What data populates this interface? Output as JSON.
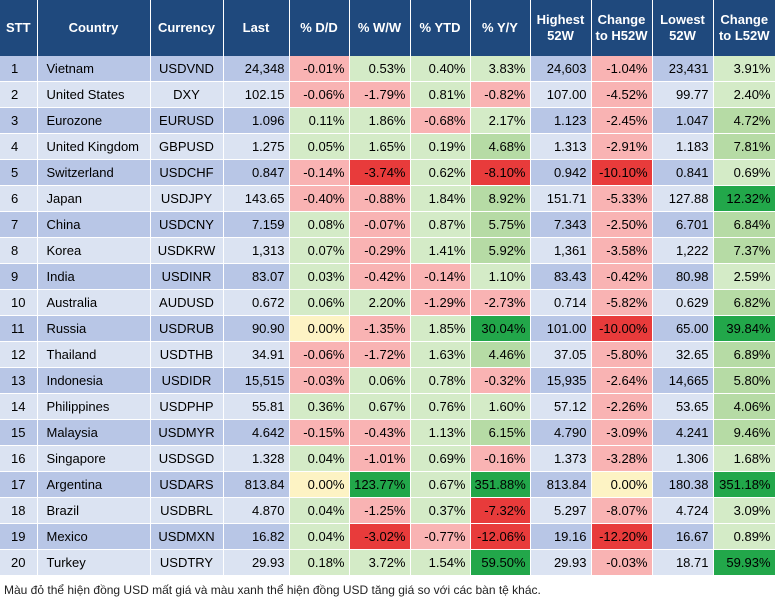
{
  "headers": [
    "STT",
    "Country",
    "Currency",
    "Last",
    "% D/D",
    "% W/W",
    "% YTD",
    "% Y/Y",
    "Highest 52W",
    "Change to H52W",
    "Lowest 52W",
    "Change to L52W"
  ],
  "rows": [
    [
      "1",
      "Vietnam",
      "USDVND",
      "24,348",
      "-0.01%",
      "0.53%",
      "0.40%",
      "3.83%",
      "24,603",
      "-1.04%",
      "23,431",
      "3.91%"
    ],
    [
      "2",
      "United States",
      "DXY",
      "102.15",
      "-0.06%",
      "-1.79%",
      "0.81%",
      "-0.82%",
      "107.00",
      "-4.52%",
      "99.77",
      "2.40%"
    ],
    [
      "3",
      "Eurozone",
      "EURUSD",
      "1.096",
      "0.11%",
      "1.86%",
      "-0.68%",
      "2.17%",
      "1.123",
      "-2.45%",
      "1.047",
      "4.72%"
    ],
    [
      "4",
      "United Kingdom",
      "GBPUSD",
      "1.275",
      "0.05%",
      "1.65%",
      "0.19%",
      "4.68%",
      "1.313",
      "-2.91%",
      "1.183",
      "7.81%"
    ],
    [
      "5",
      "Switzerland",
      "USDCHF",
      "0.847",
      "-0.14%",
      "-3.74%",
      "0.62%",
      "-8.10%",
      "0.942",
      "-10.10%",
      "0.841",
      "0.69%"
    ],
    [
      "6",
      "Japan",
      "USDJPY",
      "143.65",
      "-0.40%",
      "-0.88%",
      "1.84%",
      "8.92%",
      "151.71",
      "-5.33%",
      "127.88",
      "12.32%"
    ],
    [
      "7",
      "China",
      "USDCNY",
      "7.159",
      "0.08%",
      "-0.07%",
      "0.87%",
      "5.75%",
      "7.343",
      "-2.50%",
      "6.701",
      "6.84%"
    ],
    [
      "8",
      "Korea",
      "USDKRW",
      "1,313",
      "0.07%",
      "-0.29%",
      "1.41%",
      "5.92%",
      "1,361",
      "-3.58%",
      "1,222",
      "7.37%"
    ],
    [
      "9",
      "India",
      "USDINR",
      "83.07",
      "0.03%",
      "-0.42%",
      "-0.14%",
      "1.10%",
      "83.43",
      "-0.42%",
      "80.98",
      "2.59%"
    ],
    [
      "10",
      "Australia",
      "AUDUSD",
      "0.672",
      "0.06%",
      "2.20%",
      "-1.29%",
      "-2.73%",
      "0.714",
      "-5.82%",
      "0.629",
      "6.82%"
    ],
    [
      "11",
      "Russia",
      "USDRUB",
      "90.90",
      "0.00%",
      "-1.35%",
      "1.85%",
      "30.04%",
      "101.00",
      "-10.00%",
      "65.00",
      "39.84%"
    ],
    [
      "12",
      "Thailand",
      "USDTHB",
      "34.91",
      "-0.06%",
      "-1.72%",
      "1.63%",
      "4.46%",
      "37.05",
      "-5.80%",
      "32.65",
      "6.89%"
    ],
    [
      "13",
      "Indonesia",
      "USDIDR",
      "15,515",
      "-0.03%",
      "0.06%",
      "0.78%",
      "-0.32%",
      "15,935",
      "-2.64%",
      "14,665",
      "5.80%"
    ],
    [
      "14",
      "Philippines",
      "USDPHP",
      "55.81",
      "0.36%",
      "0.67%",
      "0.76%",
      "1.60%",
      "57.12",
      "-2.26%",
      "53.65",
      "4.06%"
    ],
    [
      "15",
      "Malaysia",
      "USDMYR",
      "4.642",
      "-0.15%",
      "-0.43%",
      "1.13%",
      "6.15%",
      "4.790",
      "-3.09%",
      "4.241",
      "9.46%"
    ],
    [
      "16",
      "Singapore",
      "USDSGD",
      "1.328",
      "0.04%",
      "-1.01%",
      "0.69%",
      "-0.16%",
      "1.373",
      "-3.28%",
      "1.306",
      "1.68%"
    ],
    [
      "17",
      "Argentina",
      "USDARS",
      "813.84",
      "0.00%",
      "123.77%",
      "0.67%",
      "351.88%",
      "813.84",
      "0.00%",
      "180.38",
      "351.18%"
    ],
    [
      "18",
      "Brazil",
      "USDBRL",
      "4.870",
      "0.04%",
      "-1.25%",
      "0.37%",
      "-7.32%",
      "5.297",
      "-8.07%",
      "4.724",
      "3.09%"
    ],
    [
      "19",
      "Mexico",
      "USDMXN",
      "16.82",
      "0.04%",
      "-3.02%",
      "-0.77%",
      "-12.06%",
      "19.16",
      "-12.20%",
      "16.67",
      "0.89%"
    ],
    [
      "20",
      "Turkey",
      "USDTRY",
      "29.93",
      "0.18%",
      "3.72%",
      "1.54%",
      "59.50%",
      "29.93",
      "-0.03%",
      "18.71",
      "59.93%"
    ]
  ],
  "footnote": "Màu đỏ thể hiện đồng USD mất giá và màu xanh thể hiện đồng USD tăng giá so với các bàn tệ khác."
}
